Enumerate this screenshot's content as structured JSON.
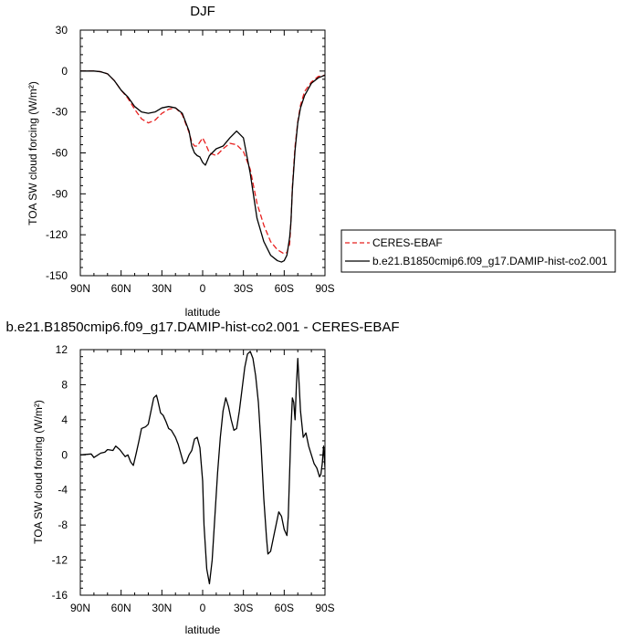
{
  "chart_data": [
    {
      "type": "line",
      "title": "DJF",
      "xlabel": "latitude",
      "ylabel": "TOA SW cloud forcing (W/m²)",
      "xlim": [
        90,
        -90
      ],
      "ylim": [
        -150,
        30
      ],
      "xticks": [
        90,
        60,
        30,
        0,
        -30,
        -60,
        -90
      ],
      "xtick_labels": [
        "90N",
        "60N",
        "30N",
        "0",
        "30S",
        "60S",
        "90S"
      ],
      "yticks": [
        -150,
        -120,
        -90,
        -60,
        -30,
        0,
        30
      ],
      "ytick_labels": [
        "-150",
        "-120",
        "-90",
        "-60",
        "-30",
        "0",
        "30"
      ],
      "legend_position": "right",
      "series": [
        {
          "name": "CERES-EBAF",
          "color": "#e8201f",
          "dash": "dashed",
          "x": [
            90,
            80,
            75,
            70,
            65,
            60,
            55,
            50,
            45,
            40,
            35,
            30,
            25,
            20,
            15,
            10,
            8,
            6,
            4,
            2,
            0,
            -2,
            -5,
            -10,
            -15,
            -20,
            -25,
            -30,
            -35,
            -40,
            -45,
            -50,
            -55,
            -60,
            -62,
            -64,
            -65,
            -66,
            -68,
            -70,
            -72,
            -75,
            -80,
            -85,
            -90
          ],
          "values": [
            0,
            0,
            -0.5,
            -2,
            -7,
            -14,
            -20,
            -28,
            -35,
            -38,
            -36,
            -31,
            -28,
            -27,
            -32,
            -45,
            -52,
            -55,
            -55,
            -52,
            -49,
            -53,
            -60,
            -62,
            -57,
            -53,
            -54,
            -59,
            -72,
            -97,
            -113,
            -125,
            -131,
            -134,
            -133,
            -127,
            -110,
            -85,
            -55,
            -37,
            -25,
            -15,
            -8,
            -4,
            -3
          ]
        },
        {
          "name": "b.e21.B1850cmip6.f09_g17.DAMIP-hist-co2.001",
          "color": "#000000",
          "dash": "solid",
          "x": [
            90,
            80,
            75,
            70,
            65,
            60,
            55,
            50,
            45,
            40,
            35,
            30,
            25,
            20,
            15,
            10,
            8,
            6,
            4,
            2,
            0,
            -2,
            -5,
            -10,
            -15,
            -20,
            -25,
            -30,
            -35,
            -40,
            -45,
            -50,
            -55,
            -58,
            -60,
            -62,
            -64,
            -65,
            -66,
            -68,
            -70,
            -72,
            -75,
            -80,
            -85,
            -90
          ],
          "values": [
            0,
            0,
            -0.5,
            -2,
            -7,
            -14,
            -19,
            -26,
            -30,
            -31,
            -30,
            -27,
            -26,
            -27,
            -31,
            -44,
            -55,
            -60,
            -62,
            -63,
            -67,
            -69,
            -62,
            -57,
            -55,
            -49,
            -44,
            -49,
            -75,
            -108,
            -125,
            -135,
            -139,
            -140,
            -139,
            -135,
            -122,
            -110,
            -87,
            -58,
            -38,
            -27,
            -18,
            -9,
            -5,
            -3
          ]
        }
      ]
    },
    {
      "type": "line",
      "title": "b.e21.B1850cmip6.f09_g17.DAMIP-hist-co2.001 - CERES-EBAF",
      "xlabel": "latitude",
      "ylabel": "TOA SW cloud forcing (W/m²)",
      "xlim": [
        90,
        -90
      ],
      "ylim": [
        -16,
        12
      ],
      "xticks": [
        90,
        60,
        30,
        0,
        -30,
        -60,
        -90
      ],
      "xtick_labels": [
        "90N",
        "60N",
        "30N",
        "0",
        "30S",
        "60S",
        "90S"
      ],
      "yticks": [
        -16,
        -12,
        -8,
        -4,
        0,
        4,
        8,
        12
      ],
      "ytick_labels": [
        "-16",
        "-12",
        "-8",
        "-4",
        "0",
        "4",
        "8",
        "12"
      ],
      "series": [
        {
          "color": "#000000",
          "dash": "solid",
          "x": [
            90,
            82,
            80,
            75,
            72,
            70,
            66,
            64,
            61,
            59,
            57,
            55,
            53,
            51,
            49,
            47,
            45,
            42,
            40,
            38,
            36,
            34,
            33,
            31,
            29,
            27,
            25,
            23,
            20,
            18,
            16,
            14,
            12,
            10,
            8,
            6,
            4,
            2,
            0,
            -1,
            -3,
            -5,
            -7,
            -9,
            -11,
            -13,
            -15,
            -17,
            -19,
            -21,
            -23,
            -25,
            -27,
            -29,
            -31,
            -33,
            -35,
            -37,
            -39,
            -41,
            -43,
            -45,
            -47,
            -48,
            -50,
            -52,
            -54,
            -56,
            -58,
            -60,
            -62,
            -63,
            -64,
            -65,
            -66,
            -67,
            -68,
            -69,
            -70,
            -72,
            -74,
            -76,
            -78,
            -80,
            -82,
            -84,
            -86,
            -87,
            -88,
            -89,
            -90
          ],
          "values": [
            0,
            0.1,
            -0.3,
            0.2,
            0.3,
            0.6,
            0.5,
            1.0,
            0.6,
            0.2,
            -0.2,
            0.0,
            -0.8,
            -1.2,
            0.1,
            1.5,
            3.0,
            3.2,
            3.5,
            5.0,
            6.5,
            6.8,
            6.2,
            4.8,
            4.5,
            3.8,
            3.0,
            2.8,
            2.0,
            1.2,
            0.1,
            -1.0,
            -0.8,
            0.0,
            0.5,
            1.8,
            2.0,
            0.8,
            -3.0,
            -8.0,
            -13.0,
            -14.7,
            -12.0,
            -7.0,
            -2.0,
            2.0,
            5.0,
            6.5,
            5.5,
            4.0,
            2.8,
            3.0,
            5.0,
            7.5,
            10.0,
            11.5,
            11.8,
            11.0,
            9.0,
            6.0,
            1.0,
            -5.0,
            -9.5,
            -11.3,
            -11.0,
            -9.5,
            -8.0,
            -6.5,
            -7.0,
            -8.5,
            -9.2,
            -7.0,
            -2.0,
            3.0,
            6.5,
            6.0,
            4.0,
            8.0,
            11.0,
            5.0,
            2.0,
            2.5,
            1.0,
            0.0,
            -1.0,
            -1.5,
            -2.5,
            -2.2,
            -1.0,
            1.0,
            -1.5
          ]
        }
      ]
    }
  ]
}
